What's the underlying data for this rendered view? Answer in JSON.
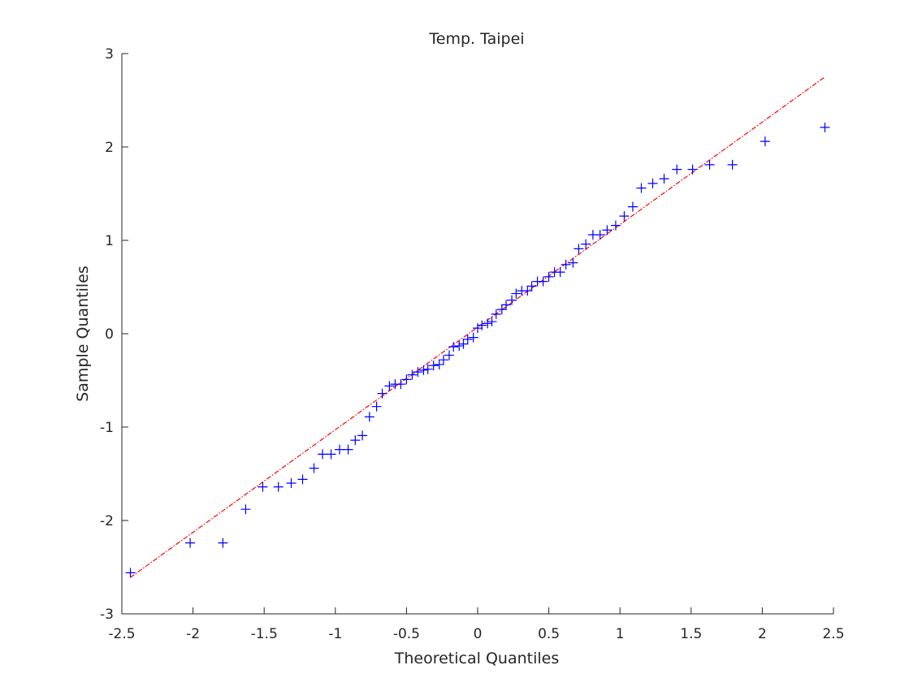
{
  "chart_data": {
    "type": "scatter",
    "title": "Temp. Taipei",
    "xlabel": "Theoretical Quantiles",
    "ylabel": "Sample Quantiles",
    "xlim": [
      -2.5,
      2.5
    ],
    "ylim": [
      -3,
      3
    ],
    "grid": false,
    "legend": "none",
    "x_ticks": [
      -2.5,
      -2,
      -1.5,
      -1,
      -0.5,
      0,
      0.5,
      1,
      1.5,
      2,
      2.5
    ],
    "y_ticks": [
      -3,
      -2,
      -1,
      0,
      1,
      2,
      3
    ],
    "x_tick_labels": [
      "-2.5",
      "-2",
      "-1.5",
      "-1",
      "-0.5",
      "0",
      "0.5",
      "1",
      "1.5",
      "2",
      "2.5"
    ],
    "y_tick_labels": [
      "-3",
      "-2",
      "-1",
      "0",
      "1",
      "2",
      "3"
    ],
    "marker": "plus",
    "marker_color": "#0000ff",
    "reference_line_color": "#ff0000",
    "points": [
      [
        -2.44,
        -2.56
      ],
      [
        -2.02,
        -2.24
      ],
      [
        -1.79,
        -2.24
      ],
      [
        -1.63,
        -1.88
      ],
      [
        -1.51,
        -1.64
      ],
      [
        -1.4,
        -1.64
      ],
      [
        -1.31,
        -1.6
      ],
      [
        -1.23,
        -1.56
      ],
      [
        -1.15,
        -1.44
      ],
      [
        -1.09,
        -1.29
      ],
      [
        -1.03,
        -1.29
      ],
      [
        -0.97,
        -1.24
      ],
      [
        -0.91,
        -1.24
      ],
      [
        -0.86,
        -1.14
      ],
      [
        -0.81,
        -1.09
      ],
      [
        -0.76,
        -0.89
      ],
      [
        -0.71,
        -0.78
      ],
      [
        -0.67,
        -0.64
      ],
      [
        -0.62,
        -0.56
      ],
      [
        -0.58,
        -0.54
      ],
      [
        -0.54,
        -0.54
      ],
      [
        -0.5,
        -0.49
      ],
      [
        -0.46,
        -0.44
      ],
      [
        -0.42,
        -0.41
      ],
      [
        -0.38,
        -0.39
      ],
      [
        -0.35,
        -0.38
      ],
      [
        -0.31,
        -0.34
      ],
      [
        -0.27,
        -0.33
      ],
      [
        -0.24,
        -0.28
      ],
      [
        -0.2,
        -0.23
      ],
      [
        -0.17,
        -0.14
      ],
      [
        -0.13,
        -0.13
      ],
      [
        -0.1,
        -0.11
      ],
      [
        -0.07,
        -0.06
      ],
      [
        -0.03,
        -0.04
      ],
      [
        0.0,
        0.06
      ],
      [
        0.03,
        0.09
      ],
      [
        0.07,
        0.11
      ],
      [
        0.1,
        0.13
      ],
      [
        0.13,
        0.21
      ],
      [
        0.17,
        0.26
      ],
      [
        0.2,
        0.31
      ],
      [
        0.24,
        0.36
      ],
      [
        0.27,
        0.43
      ],
      [
        0.31,
        0.46
      ],
      [
        0.35,
        0.46
      ],
      [
        0.38,
        0.51
      ],
      [
        0.42,
        0.56
      ],
      [
        0.46,
        0.56
      ],
      [
        0.5,
        0.61
      ],
      [
        0.54,
        0.66
      ],
      [
        0.58,
        0.66
      ],
      [
        0.62,
        0.74
      ],
      [
        0.67,
        0.76
      ],
      [
        0.71,
        0.91
      ],
      [
        0.76,
        0.96
      ],
      [
        0.81,
        1.06
      ],
      [
        0.86,
        1.06
      ],
      [
        0.91,
        1.11
      ],
      [
        0.97,
        1.16
      ],
      [
        1.03,
        1.26
      ],
      [
        1.09,
        1.36
      ],
      [
        1.15,
        1.56
      ],
      [
        1.23,
        1.61
      ],
      [
        1.31,
        1.66
      ],
      [
        1.4,
        1.76
      ],
      [
        1.51,
        1.76
      ],
      [
        1.63,
        1.81
      ],
      [
        1.79,
        1.81
      ],
      [
        2.02,
        2.06
      ],
      [
        2.44,
        2.21
      ]
    ],
    "reference_line": [
      [
        -2.44,
        -2.61
      ],
      [
        2.44,
        2.75
      ]
    ]
  }
}
